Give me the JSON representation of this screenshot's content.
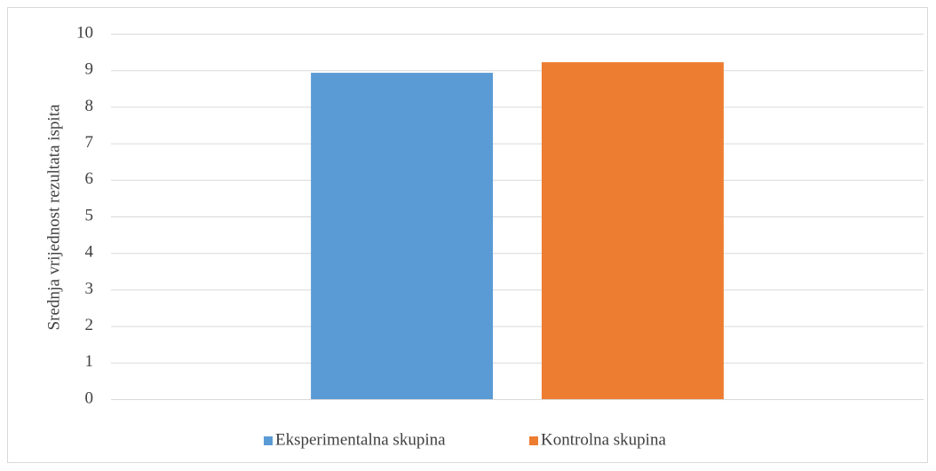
{
  "chart_data": {
    "type": "bar",
    "y_label": "Srednja vrijednost rezultata ispita",
    "categories": [
      null
    ],
    "series": [
      {
        "name": "Eksperimentalna skupina",
        "color": "#5b9bd5",
        "values": [
          8.93
        ]
      },
      {
        "name": "Kontrolna skupina",
        "color": "#ed7d31",
        "values": [
          9.22
        ]
      }
    ],
    "ylim": [
      0,
      10
    ],
    "yticks": [
      0,
      1,
      2,
      3,
      4,
      5,
      6,
      7,
      8,
      9,
      10
    ],
    "grid": true,
    "legend": "bottom"
  }
}
